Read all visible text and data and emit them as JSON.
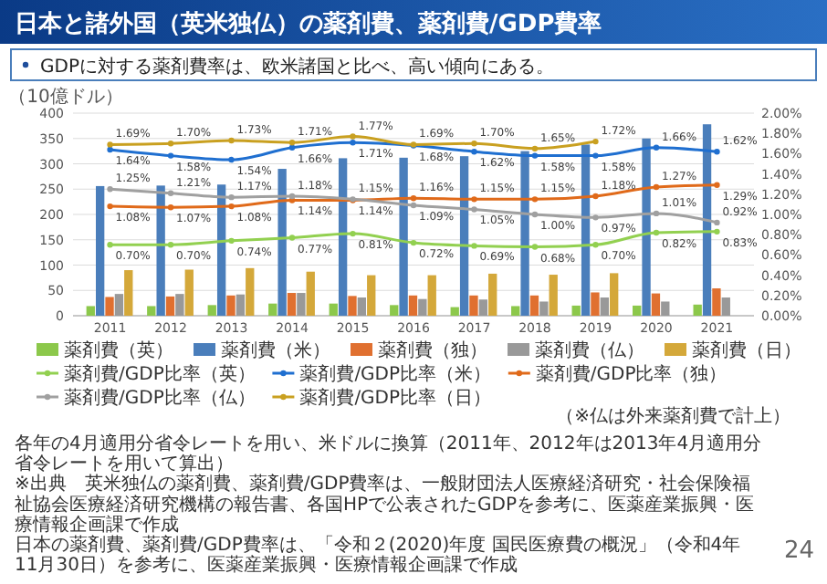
{
  "chart_data": {
    "type": "bar",
    "title": "日本と諸外国（英米独仏）の薬剤費、薬剤費/GDP費率",
    "subtitle": "GDPに対する薬剤費率は、欧米諸国と比べ、高い傾向にある。",
    "ylabel": "（10億ドル）",
    "categories": [
      "2011",
      "2012",
      "2013",
      "2014",
      "2015",
      "2016",
      "2017",
      "2018",
      "2019",
      "2020",
      "2021"
    ],
    "series": [
      {
        "name": "薬剤費（英）",
        "color": "#8cc84b",
        "values": [
          19,
          19,
          21,
          24,
          24,
          21,
          17,
          19,
          20,
          20,
          22
        ]
      },
      {
        "name": "薬剤費（米）",
        "color": "#4a7ebb",
        "values": [
          256,
          257,
          259,
          290,
          311,
          312,
          315,
          325,
          338,
          350,
          378
        ]
      },
      {
        "name": "薬剤費（独）",
        "color": "#e07030",
        "values": [
          37,
          38,
          40,
          45,
          39,
          40,
          40,
          40,
          46,
          44,
          54
        ]
      },
      {
        "name": "薬剤費（仏）",
        "color": "#999999",
        "values": [
          43,
          43,
          42,
          45,
          36,
          33,
          32,
          28,
          36,
          28,
          36
        ]
      },
      {
        "name": "薬剤費（日）",
        "color": "#d4a83a",
        "values": [
          90,
          91,
          94,
          87,
          80,
          80,
          83,
          81,
          84,
          null,
          null
        ]
      },
      {
        "name": "薬剤費/GDP比率（英）",
        "type": "line",
        "axis": "y2",
        "color": "#92d050",
        "values": [
          0.7,
          0.7,
          0.74,
          0.77,
          0.81,
          0.72,
          0.69,
          0.68,
          0.7,
          0.82,
          0.83
        ],
        "value_labels": [
          "0.70%",
          "0.70%",
          "0.74%",
          "0.77%",
          "0.81%",
          "0.72%",
          "0.69%",
          "0.68%",
          "0.70%",
          "0.82%",
          "0.83%"
        ]
      },
      {
        "name": "薬剤費/GDP比率（米）",
        "type": "line",
        "axis": "y2",
        "color": "#1f6fd0",
        "values": [
          1.64,
          1.58,
          1.54,
          1.66,
          1.71,
          1.68,
          1.62,
          1.58,
          1.58,
          1.66,
          1.62
        ],
        "value_labels": [
          "1.64%",
          "1.58%",
          "1.54%",
          "1.66%",
          "1.71%",
          "1.68%",
          "1.62%",
          "1.58%",
          "1.58%",
          "1.66%",
          "1.62%"
        ]
      },
      {
        "name": "薬剤費/GDP比率（独）",
        "type": "line",
        "axis": "y2",
        "color": "#e06a1a",
        "values": [
          1.08,
          1.07,
          1.08,
          1.14,
          1.14,
          1.16,
          1.15,
          1.15,
          1.18,
          1.27,
          1.29
        ],
        "value_labels": [
          "1.08%",
          "1.07%",
          "1.08%",
          "1.14%",
          "1.14%",
          "1.16%",
          "1.15%",
          "1.15%",
          "1.18%",
          "1.27%",
          "1.29%"
        ]
      },
      {
        "name": "薬剤費/GDP比率（仏）",
        "type": "line",
        "axis": "y2",
        "color": "#a0a0a0",
        "values": [
          1.25,
          1.21,
          1.17,
          1.18,
          1.15,
          1.09,
          1.05,
          1.0,
          0.97,
          1.01,
          0.92
        ],
        "value_labels": [
          "1.25%",
          "1.21%",
          "1.17%",
          "1.18%",
          "1.15%",
          "1.09%",
          "1.05%",
          "1.00%",
          "0.97%",
          "1.01%",
          "0.92%"
        ]
      },
      {
        "name": "薬剤費/GDP比率（日）",
        "type": "line",
        "axis": "y2",
        "color": "#c9a020",
        "values": [
          1.69,
          1.7,
          1.73,
          1.71,
          1.77,
          1.69,
          1.7,
          1.65,
          1.72,
          null,
          null
        ],
        "value_labels": [
          "1.69%",
          "1.70%",
          "1.73%",
          "1.71%",
          "1.77%",
          "1.69%",
          "1.70%",
          "1.65%",
          "1.72%",
          null,
          null
        ]
      }
    ],
    "ylim": [
      0,
      400
    ],
    "yticks": [
      0,
      50,
      100,
      150,
      200,
      250,
      300,
      350,
      400
    ],
    "y2lim": [
      0,
      2
    ],
    "y2ticks": [
      {
        "value": 0,
        "label": "0.00%"
      },
      {
        "value": 0.2,
        "label": "0.20%"
      },
      {
        "value": 0.4,
        "label": "0.40%"
      },
      {
        "value": 0.6,
        "label": "0.60%"
      },
      {
        "value": 0.8,
        "label": "0.80%"
      },
      {
        "value": 1.0,
        "label": "1.00%"
      },
      {
        "value": 1.2,
        "label": "1.20%"
      },
      {
        "value": 1.4,
        "label": "1.40%"
      },
      {
        "value": 1.6,
        "label": "1.60%"
      },
      {
        "value": 1.8,
        "label": "1.80%"
      },
      {
        "value": 2.0,
        "label": "2.00%"
      }
    ],
    "grid": "y",
    "legend": "bottom",
    "marker": "circle",
    "annotations": [
      "（※仏は外来薬剤費で計上）",
      "各年の4月適用分省令レートを用い、米ドルに換算（2011年、2012年は2013年4月適用分省令レートを用いて算出）",
      "※出典　英米独仏の薬剤費、薬剤費/GDP費率は、一般財団法人医療経済研究・社会保険福祉協会医療経済研究機構の報告書、各国HPで公表されたGDPを参考に、医薬産業振興・医療情報企画課で作成",
      "日本の薬剤費、薬剤費/GDP費率は、「令和２(2020)年度 国民医療費の概況」（令和4年11月30日）を参考に、医薬産業振興・医療情報企画課で作成",
      "24"
    ]
  }
}
